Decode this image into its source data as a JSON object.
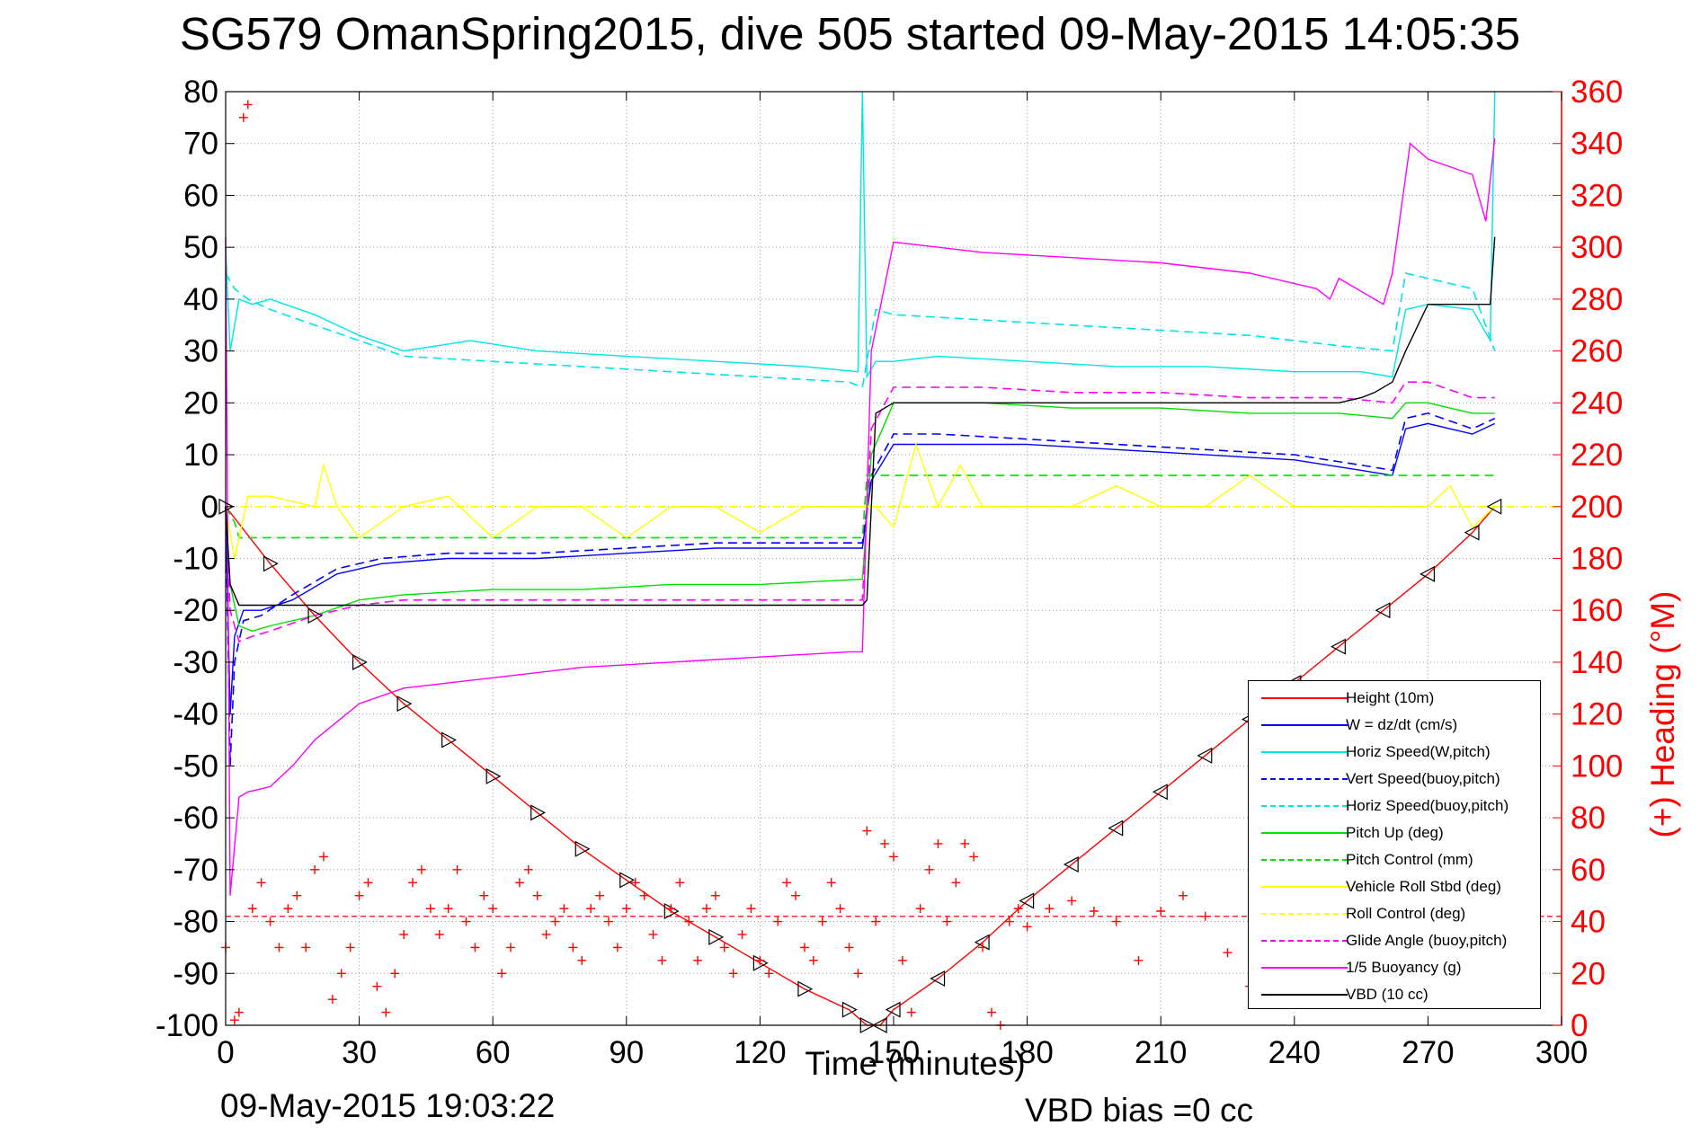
{
  "title": "SG579 OmanSpring2015, dive 505 started 09-May-2015 14:05:35",
  "footer": {
    "date": "09-May-2015 19:03:22",
    "vbd_bias": "VBD bias =0 cc"
  },
  "colors": {
    "height": "#ff0000",
    "w": "#0000ff",
    "horiz": "#00e5e5",
    "pitch": "#00e000",
    "roll": "#ffff00",
    "glide": "#ff00ff",
    "buoy": "#ff00ff",
    "vbd": "#000000",
    "heading_axis": "#ff0000"
  },
  "chart_data": {
    "type": "line",
    "xlabel": "Time (minutes)",
    "ylabel": "",
    "y2label": "(+) Heading (°M)",
    "xlim": [
      0,
      300
    ],
    "ylim": [
      -100,
      80
    ],
    "y2lim": [
      0,
      360
    ],
    "xticks": [
      0,
      30,
      60,
      90,
      120,
      150,
      180,
      210,
      240,
      270,
      300
    ],
    "yticks": [
      -100,
      -90,
      -80,
      -70,
      -60,
      -50,
      -40,
      -30,
      -20,
      -10,
      0,
      10,
      20,
      30,
      40,
      50,
      60,
      70,
      80
    ],
    "y2ticks": [
      0,
      20,
      40,
      60,
      80,
      100,
      120,
      140,
      160,
      180,
      200,
      220,
      240,
      260,
      280,
      300,
      320,
      340,
      360
    ],
    "grid": true,
    "legend_position": "bottom-right",
    "series": [
      {
        "name": "Height (10m)",
        "color_key": "height",
        "dash": "solid",
        "axis": "left",
        "marker": "triangle",
        "x": [
          0,
          10,
          20,
          30,
          40,
          50,
          60,
          70,
          80,
          90,
          100,
          110,
          120,
          130,
          140,
          144,
          147,
          150,
          160,
          170,
          180,
          190,
          200,
          210,
          220,
          230,
          240,
          250,
          260,
          270,
          280,
          285
        ],
        "y": [
          0,
          -11,
          -21,
          -30,
          -38,
          -45,
          -52,
          -59,
          -66,
          -72,
          -78,
          -83,
          -88,
          -93,
          -97,
          -100,
          -100,
          -97,
          -91,
          -84,
          -76,
          -69,
          -62,
          -55,
          -48,
          -41,
          -34,
          -27,
          -20,
          -13,
          -5,
          0
        ]
      },
      {
        "name": "W = dz/dt (cm/s)",
        "color_key": "w",
        "dash": "solid",
        "axis": "left",
        "x": [
          0,
          1,
          2,
          4,
          8,
          15,
          25,
          35,
          50,
          70,
          90,
          110,
          130,
          143,
          145,
          150,
          160,
          180,
          200,
          220,
          240,
          255,
          262,
          265,
          270,
          280,
          285
        ],
        "y": [
          0,
          -40,
          -25,
          -20,
          -20,
          -18,
          -13,
          -11,
          -10,
          -10,
          -9,
          -8,
          -8,
          -8,
          5,
          12,
          12,
          12,
          11,
          10,
          9,
          7,
          6,
          15,
          16,
          14,
          16
        ]
      },
      {
        "name": "Horiz Speed(W,pitch)",
        "color_key": "horiz",
        "dash": "solid",
        "axis": "left",
        "x": [
          0,
          1,
          3,
          6,
          10,
          20,
          30,
          40,
          55,
          70,
          90,
          110,
          130,
          142,
          143,
          144,
          146,
          150,
          160,
          180,
          200,
          220,
          240,
          255,
          262,
          265,
          270,
          280,
          284,
          285
        ],
        "y": [
          50,
          30,
          40,
          39,
          40,
          37,
          33,
          30,
          32,
          30,
          29,
          28,
          27,
          26,
          80,
          25,
          28,
          28,
          29,
          28,
          27,
          27,
          26,
          26,
          25,
          38,
          39,
          38,
          32,
          80
        ]
      },
      {
        "name": "Vert Speed(buoy,pitch)",
        "color_key": "w",
        "dash": "dash",
        "axis": "left",
        "x": [
          0,
          1,
          2,
          4,
          8,
          15,
          25,
          35,
          50,
          70,
          90,
          110,
          130,
          143,
          145,
          150,
          160,
          180,
          200,
          220,
          240,
          255,
          262,
          265,
          270,
          280,
          285
        ],
        "y": [
          0,
          -50,
          -30,
          -22,
          -21,
          -17,
          -12,
          -10,
          -9,
          -9,
          -8,
          -7,
          -7,
          -7,
          6,
          14,
          14,
          13,
          12,
          11,
          10,
          8,
          7,
          17,
          18,
          15,
          17
        ]
      },
      {
        "name": "Horiz Speed(buoy,pitch)",
        "color_key": "horiz",
        "dash": "dash",
        "axis": "left",
        "x": [
          0,
          2,
          5,
          10,
          20,
          30,
          40,
          60,
          80,
          100,
          120,
          140,
          143,
          146,
          150,
          170,
          190,
          210,
          230,
          250,
          262,
          265,
          270,
          280,
          285
        ],
        "y": [
          45,
          42,
          40,
          38,
          35,
          32,
          29,
          28,
          27,
          26,
          25,
          24,
          23,
          38,
          37,
          36,
          35,
          34,
          33,
          31,
          30,
          45,
          44,
          42,
          30
        ]
      },
      {
        "name": "Pitch Up (deg)",
        "color_key": "pitch",
        "dash": "solid",
        "axis": "left",
        "x": [
          0,
          1,
          3,
          6,
          10,
          20,
          30,
          40,
          60,
          80,
          100,
          120,
          143,
          145,
          150,
          170,
          190,
          210,
          230,
          250,
          262,
          265,
          270,
          280,
          285
        ],
        "y": [
          0,
          -15,
          -23,
          -24,
          -23,
          -21,
          -18,
          -17,
          -16,
          -16,
          -15,
          -15,
          -14,
          10,
          20,
          20,
          19,
          19,
          18,
          18,
          17,
          20,
          20,
          18,
          18
        ]
      },
      {
        "name": "Pitch Control (mm)",
        "color_key": "pitch",
        "dash": "dash",
        "axis": "left",
        "x": [
          0,
          2,
          3,
          143,
          144,
          150,
          285
        ],
        "y": [
          0,
          -3,
          -6,
          -6,
          6,
          6,
          6
        ]
      },
      {
        "name": "Vehicle Roll Stbd (deg)",
        "color_key": "roll",
        "dash": "solid",
        "axis": "left",
        "x": [
          0,
          2,
          5,
          10,
          20,
          22,
          25,
          30,
          40,
          50,
          60,
          70,
          80,
          90,
          100,
          110,
          120,
          130,
          140,
          143,
          146,
          150,
          155,
          160,
          165,
          170,
          180,
          190,
          200,
          210,
          220,
          230,
          240,
          250,
          260,
          270,
          275,
          280,
          285
        ],
        "y": [
          0,
          -10,
          2,
          2,
          0,
          8,
          0,
          -6,
          0,
          2,
          -6,
          0,
          0,
          -6,
          0,
          0,
          -5,
          0,
          0,
          0,
          0,
          -4,
          12,
          0,
          8,
          0,
          0,
          0,
          4,
          0,
          0,
          6,
          0,
          0,
          0,
          0,
          4,
          -4,
          0
        ]
      },
      {
        "name": "Roll Control (deg)",
        "color_key": "roll",
        "dash": "dash",
        "axis": "left",
        "x": [
          0,
          300
        ],
        "y": [
          0,
          0
        ]
      },
      {
        "name": "Glide Angle (buoy,pitch)",
        "color_key": "glide",
        "dash": "dash",
        "axis": "left",
        "x": [
          0,
          1,
          3,
          6,
          10,
          20,
          30,
          40,
          60,
          80,
          100,
          120,
          143,
          145,
          150,
          170,
          190,
          210,
          230,
          250,
          262,
          265,
          270,
          280,
          285
        ],
        "y": [
          0,
          -20,
          -26,
          -25,
          -24,
          -21,
          -19,
          -18,
          -18,
          -18,
          -18,
          -18,
          -18,
          15,
          23,
          23,
          22,
          22,
          21,
          21,
          20,
          24,
          24,
          21,
          21
        ]
      },
      {
        "name": "1/5 Buoyancy (g)",
        "color_key": "buoy",
        "dash": "solid",
        "axis": "left",
        "x": [
          0,
          1,
          3,
          5,
          10,
          15,
          20,
          30,
          40,
          60,
          80,
          100,
          120,
          140,
          143,
          145,
          150,
          170,
          190,
          210,
          230,
          245,
          248,
          250,
          260,
          262,
          266,
          270,
          280,
          283,
          285
        ],
        "y": [
          52,
          -75,
          -56,
          -55,
          -54,
          -50,
          -45,
          -38,
          -35,
          -33,
          -31,
          -30,
          -29,
          -28,
          -28,
          30,
          51,
          49,
          48,
          47,
          45,
          42,
          40,
          44,
          39,
          45,
          70,
          67,
          64,
          55,
          71
        ]
      },
      {
        "name": "VBD (10 cc)",
        "color_key": "vbd",
        "dash": "solid",
        "axis": "left",
        "x": [
          0,
          1,
          3,
          6,
          10,
          143,
          144,
          146,
          150,
          250,
          255,
          258,
          262,
          265,
          270,
          284,
          285
        ],
        "y": [
          0,
          -15,
          -19,
          -19,
          -19,
          -19,
          -18,
          18,
          20,
          20,
          21,
          22,
          24,
          30,
          39,
          39,
          52
        ]
      }
    ],
    "heading": {
      "name": "(+) Heading (°M)",
      "color_key": "heading_axis",
      "marker": "+",
      "axis": "right",
      "mean": 42,
      "x": [
        0,
        2,
        3,
        4,
        5,
        6,
        8,
        10,
        12,
        14,
        16,
        18,
        20,
        22,
        24,
        26,
        28,
        30,
        32,
        34,
        36,
        38,
        40,
        42,
        44,
        46,
        48,
        50,
        52,
        54,
        56,
        58,
        60,
        62,
        64,
        66,
        68,
        70,
        72,
        74,
        76,
        78,
        80,
        82,
        84,
        86,
        88,
        90,
        92,
        94,
        96,
        98,
        100,
        102,
        104,
        106,
        108,
        110,
        112,
        114,
        116,
        118,
        120,
        122,
        124,
        126,
        128,
        130,
        132,
        134,
        136,
        138,
        140,
        142,
        144,
        146,
        148,
        150,
        152,
        154,
        156,
        158,
        160,
        162,
        164,
        166,
        168,
        170,
        172,
        174,
        176,
        178,
        180,
        185,
        190,
        195,
        200,
        205,
        210,
        215,
        220,
        225,
        230,
        235
      ],
      "y": [
        30,
        2,
        5,
        350,
        355,
        45,
        55,
        40,
        30,
        45,
        50,
        30,
        60,
        65,
        10,
        20,
        30,
        50,
        55,
        15,
        5,
        20,
        35,
        55,
        60,
        45,
        35,
        45,
        60,
        40,
        30,
        50,
        45,
        20,
        30,
        55,
        60,
        50,
        35,
        40,
        45,
        30,
        25,
        45,
        50,
        40,
        30,
        45,
        55,
        50,
        35,
        25,
        45,
        55,
        40,
        25,
        45,
        50,
        30,
        20,
        35,
        45,
        25,
        20,
        40,
        55,
        50,
        30,
        25,
        40,
        55,
        45,
        30,
        20,
        75,
        40,
        70,
        65,
        25,
        5,
        45,
        60,
        70,
        40,
        55,
        70,
        65,
        30,
        5,
        0,
        40,
        45,
        38,
        45,
        48,
        44,
        40,
        25,
        44,
        50,
        42,
        28,
        15,
        48
      ]
    }
  }
}
